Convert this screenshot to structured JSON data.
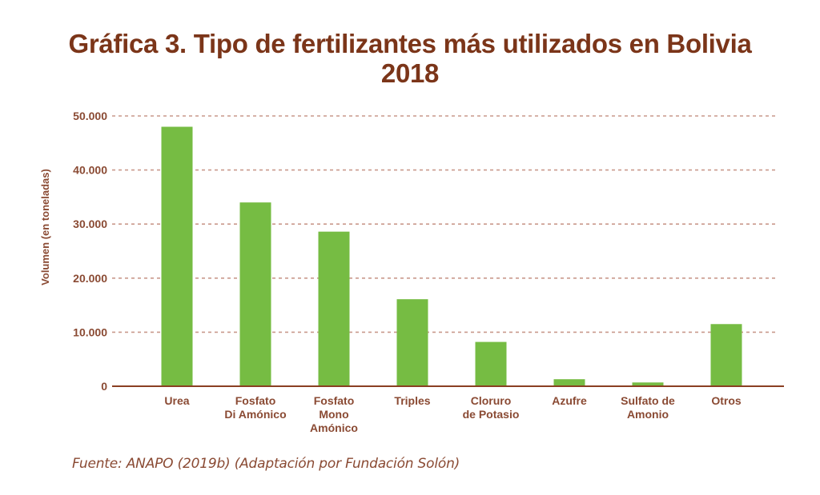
{
  "chart_data": {
    "type": "bar",
    "title": "Gráfica 3. Tipo de fertilizantes más utilizados en Bolivia 2018",
    "title_lines": [
      "Gráfica 3. Tipo de fertilizantes más utilizados en Bolivia",
      "2018"
    ],
    "xlabel": "",
    "ylabel": "Volumen (en toneladas)",
    "ylim": [
      0,
      50000
    ],
    "yticks": [
      0,
      10000,
      20000,
      30000,
      40000,
      50000
    ],
    "ytick_labels": [
      "0",
      "10.000",
      "20.000",
      "30.000",
      "40.000",
      "50.000"
    ],
    "grid": true,
    "categories": [
      [
        "Urea"
      ],
      [
        "Fosfato",
        "Di Amónico"
      ],
      [
        "Fosfato",
        "Mono",
        "Amónico"
      ],
      [
        "Triples"
      ],
      [
        "Cloruro",
        "de Potasio"
      ],
      [
        "Azufre"
      ],
      [
        "Sulfato de",
        "Amonio"
      ],
      [
        "Otros"
      ]
    ],
    "values": [
      48000,
      34000,
      28600,
      16100,
      8200,
      1300,
      700,
      11500
    ],
    "colors": {
      "bar": "#76bc43",
      "text": "#8a4a33",
      "title": "#7b3519",
      "axis": "#8a3f22",
      "grid": "#c9998c"
    },
    "source": "Fuente: ANAPO (2019b) (Adaptación por Fundación Solón)"
  }
}
